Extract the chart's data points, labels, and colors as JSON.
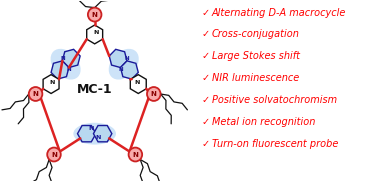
{
  "background_color": "#ffffff",
  "mc1_label": "MC-1",
  "bullet_items": [
    "Alternating D-A macrocycle",
    "Cross-conjugation",
    "Large Stokes shift",
    "NIR luminescence",
    "Positive solvatochromism",
    "Metal ion recognition",
    "Turn-on fluorescent probe"
  ],
  "bullet_color": "#ff0000",
  "checkmark": "✓",
  "text_color": "#ff0000",
  "node_color": "#f8aaaa",
  "node_edge_color": "#cc2222",
  "bond_red": "#dd2222",
  "bond_dark": "#111111",
  "ring_fill_blue": "#b8d8f0",
  "ring_fill_white": "#ffffff",
  "ring_edge_blue": "#1a1a99",
  "ring_edge_dark": "#111111",
  "alkyl_color": "#111111",
  "font_size_bullet": 7.0,
  "font_size_label": 9,
  "fig_width": 3.78,
  "fig_height": 1.82
}
